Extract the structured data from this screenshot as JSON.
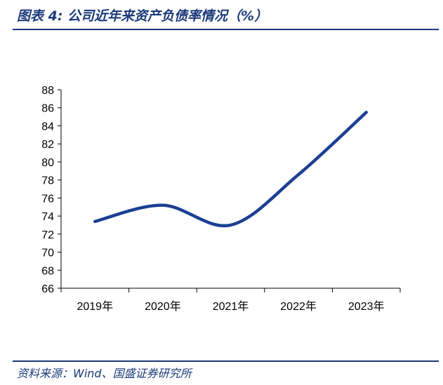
{
  "header": {
    "title": "图表 4:  公司近年来资产负债率情况（%）"
  },
  "footer": {
    "source": "资料来源：Wind、国盛证券研究所"
  },
  "chart_data": {
    "type": "line",
    "categories": [
      "2019年",
      "2020年",
      "2021年",
      "2022年",
      "2023年"
    ],
    "series": [
      {
        "values": [
          73.4,
          75.2,
          73.0,
          78.6,
          85.5
        ]
      }
    ],
    "ylim": [
      66,
      88
    ],
    "yticks": [
      66,
      68,
      70,
      72,
      74,
      76,
      78,
      80,
      82,
      84,
      86,
      88
    ],
    "grid": false,
    "legend": "none",
    "line_color": "#1b3f93"
  }
}
